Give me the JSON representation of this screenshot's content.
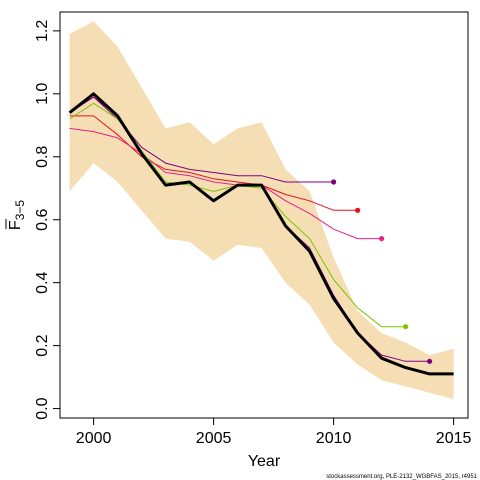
{
  "chart_data": {
    "type": "line",
    "xlabel": "Year",
    "ylabel_main": "F",
    "ylabel_sub": "3−5",
    "xlim": [
      1998.6,
      2015.6
    ],
    "ylim": [
      -0.03,
      1.26
    ],
    "xticks": [
      2000,
      2005,
      2010,
      2015
    ],
    "yticks": [
      0.0,
      0.2,
      0.4,
      0.6,
      0.8,
      1.0,
      1.2
    ],
    "ytick_labels": [
      "0.0",
      "0.2",
      "0.4",
      "0.6",
      "0.8",
      "1.0",
      "1.2"
    ],
    "grid": false,
    "footnote": "stockassessment.org, PLE-2132_WGBFAS_2015, r4951",
    "confidence_band": {
      "color": "#f5deb3",
      "x": [
        1999,
        2000,
        2001,
        2002,
        2003,
        2004,
        2005,
        2006,
        2007,
        2008,
        2009,
        2010,
        2011,
        2012,
        2013,
        2014,
        2015
      ],
      "upper": [
        1.19,
        1.23,
        1.15,
        1.02,
        0.89,
        0.91,
        0.84,
        0.89,
        0.91,
        0.76,
        0.69,
        0.48,
        0.31,
        0.24,
        0.21,
        0.17,
        0.19
      ],
      "lower": [
        0.69,
        0.78,
        0.72,
        0.63,
        0.54,
        0.53,
        0.47,
        0.52,
        0.51,
        0.4,
        0.33,
        0.21,
        0.14,
        0.09,
        0.07,
        0.05,
        0.03
      ]
    },
    "series": [
      {
        "color": "#000000",
        "width": 3,
        "end_marker": false,
        "x": [
          1999,
          2000,
          2001,
          2002,
          2003,
          2004,
          2005,
          2006,
          2007,
          2008,
          2009,
          2010,
          2011,
          2012,
          2013,
          2014,
          2015
        ],
        "values": [
          0.94,
          1.0,
          0.93,
          0.81,
          0.71,
          0.72,
          0.66,
          0.71,
          0.71,
          0.58,
          0.5,
          0.35,
          0.24,
          0.16,
          0.13,
          0.11,
          0.11
        ]
      },
      {
        "color": "#800080",
        "width": 1,
        "end_marker": true,
        "x": [
          1999,
          2000,
          2001,
          2002,
          2003,
          2004,
          2005,
          2006,
          2007,
          2008,
          2009,
          2010
        ],
        "values": [
          0.94,
          0.99,
          0.92,
          0.83,
          0.78,
          0.76,
          0.75,
          0.74,
          0.74,
          0.72,
          0.72,
          0.72
        ]
      },
      {
        "color": "#e8101e",
        "width": 1,
        "end_marker": true,
        "x": [
          1999,
          2000,
          2001,
          2002,
          2003,
          2004,
          2005,
          2006,
          2007,
          2008,
          2009,
          2010,
          2011
        ],
        "values": [
          0.93,
          0.93,
          0.87,
          0.8,
          0.76,
          0.75,
          0.73,
          0.72,
          0.71,
          0.68,
          0.66,
          0.63,
          0.63
        ]
      },
      {
        "color": "#e8208a",
        "width": 1,
        "end_marker": true,
        "x": [
          1999,
          2000,
          2001,
          2002,
          2003,
          2004,
          2005,
          2006,
          2007,
          2008,
          2009,
          2010,
          2011,
          2012
        ],
        "values": [
          0.89,
          0.88,
          0.86,
          0.81,
          0.75,
          0.74,
          0.72,
          0.71,
          0.71,
          0.66,
          0.62,
          0.57,
          0.54,
          0.54
        ]
      },
      {
        "color": "#7ec400",
        "width": 1,
        "end_marker": true,
        "x": [
          1999,
          2000,
          2001,
          2002,
          2003,
          2004,
          2005,
          2006,
          2007,
          2008,
          2009,
          2010,
          2011,
          2012,
          2013
        ],
        "values": [
          0.92,
          0.97,
          0.92,
          0.82,
          0.72,
          0.71,
          0.69,
          0.71,
          0.7,
          0.61,
          0.54,
          0.41,
          0.32,
          0.26,
          0.26
        ]
      },
      {
        "color": "#800080",
        "width": 1,
        "end_marker": true,
        "x": [
          1999,
          2000,
          2001,
          2002,
          2003,
          2004,
          2005,
          2006,
          2007,
          2008,
          2009,
          2010,
          2011,
          2012,
          2013,
          2014
        ],
        "values": [
          0.94,
          0.99,
          0.93,
          0.81,
          0.71,
          0.72,
          0.66,
          0.71,
          0.71,
          0.58,
          0.51,
          0.36,
          0.24,
          0.17,
          0.15,
          0.15
        ]
      }
    ]
  }
}
